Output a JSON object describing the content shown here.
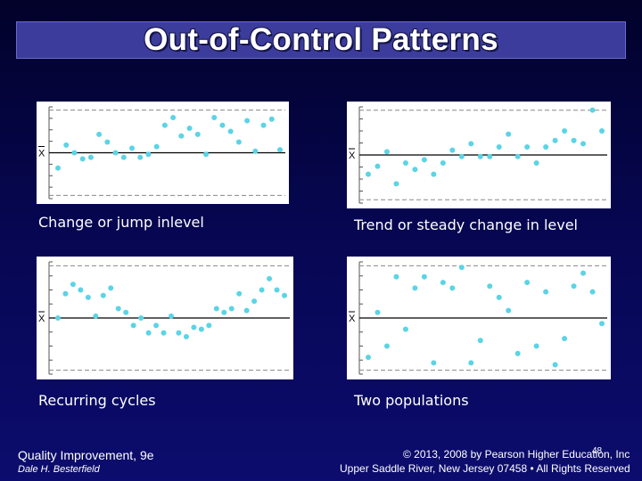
{
  "slide": {
    "title": "Out-of-Control Patterns",
    "footer_left_title": "Quality Improvement, 9e",
    "footer_left_author": "Dale H. Besterfield",
    "footer_right_copyright": "© 2013, 2008 by Pearson Higher Education, Inc",
    "footer_right_address": "Upper Saddle River, New Jersey 07458 • All Rights Reserved",
    "page_number": "48"
  },
  "colors": {
    "background": "#06064f",
    "title_bar": "#3c3c9c",
    "point": "#5ad4e6",
    "center_line": "#000000",
    "limit_line": "#888888"
  },
  "chart_data": [
    {
      "type": "scatter",
      "caption": "Change or jump inlevel",
      "center_label": "X",
      "ylim": [
        -3,
        3
      ],
      "y": [
        -1,
        0.5,
        0,
        -0.4,
        -0.3,
        1.2,
        0.7,
        0,
        -0.3,
        0.3,
        -0.3,
        -0.1,
        0.4,
        1.8,
        2.3,
        1.1,
        1.6,
        1.2,
        -0.1,
        2.3,
        1.8,
        1.4,
        0.7,
        2.1,
        0.1,
        1.8,
        2.2,
        0.2
      ]
    },
    {
      "type": "scatter",
      "caption": "Trend or steady change in level",
      "center_label": "X",
      "ylim": [
        -3,
        3
      ],
      "y": [
        -1.2,
        -0.7,
        0.2,
        -1.8,
        -0.5,
        -0.9,
        -0.3,
        -1.2,
        -0.5,
        0.3,
        -0.1,
        0.7,
        -0.1,
        -0.1,
        0.5,
        1.3,
        -0.1,
        0.5,
        -0.5,
        0.5,
        0.9,
        1.5,
        0.9,
        0.7,
        2.8,
        1.5
      ]
    },
    {
      "type": "scatter",
      "caption": "Recurring cycles",
      "center_label": "X",
      "ylim": [
        -3,
        3
      ],
      "y": [
        0,
        1.3,
        1.8,
        1.5,
        1.1,
        0.1,
        1.2,
        1.6,
        0.5,
        0.3,
        -0.4,
        0,
        -0.8,
        -0.4,
        -0.8,
        0.1,
        -0.8,
        -1,
        -0.5,
        -0.6,
        -0.4,
        0.5,
        0.3,
        0.5,
        1.3,
        0.4,
        0.9,
        1.5,
        2.1,
        1.5,
        1.2
      ]
    },
    {
      "type": "scatter",
      "caption": "Two populations",
      "center_label": "X",
      "ylim": [
        -3,
        3
      ],
      "y": [
        -2.1,
        0.3,
        -1.5,
        2.2,
        -0.6,
        1.6,
        2.2,
        -2.4,
        1.9,
        1.6,
        2.7,
        -2.4,
        -1.2,
        1.7,
        1.1,
        0.4,
        -1.9,
        1.9,
        -1.5,
        1.4,
        -2.5,
        -1.1,
        1.7,
        2.4,
        1.4,
        -0.3
      ]
    }
  ],
  "captions": {
    "jump": "Change or jump inlevel",
    "trend": "Trend or steady change in level",
    "cycles": "Recurring cycles",
    "pops": "Two populations"
  }
}
